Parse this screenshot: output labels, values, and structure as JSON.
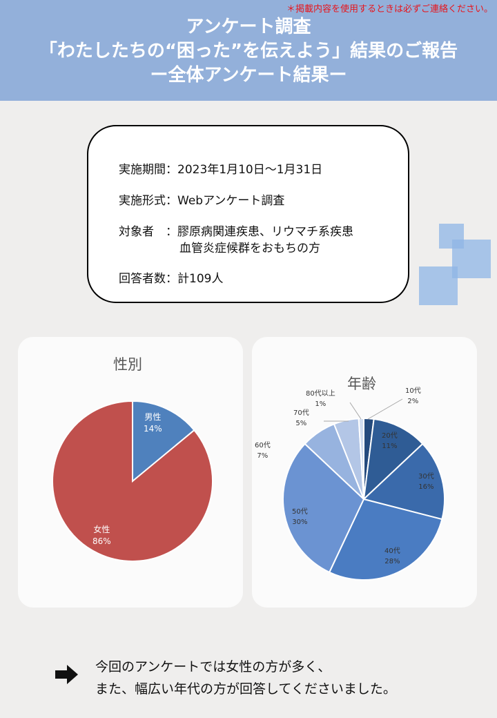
{
  "notice": "＊掲載内容を使用するときは必ずご連絡ください。",
  "title": {
    "line1": "アンケート調査",
    "line2": "「わたしたちの“困った”を伝えよう」結果のご報告",
    "line3": "ー全体アンケート結果ー"
  },
  "info": {
    "period": "実施期間：2023年1月10日～1月31日",
    "format": "実施形式：Webアンケート調査",
    "target_line1": "対象者　：膠原病関連疾患、リウマチ系疾患",
    "target_line2": "血管炎症候群をおもちの方",
    "respondents": "回答者数：計109人"
  },
  "chart_data": [
    {
      "type": "pie",
      "title": "性別",
      "slices": [
        {
          "label": "男性",
          "pct": "14%",
          "value": 14,
          "color": "#4f81bd"
        },
        {
          "label": "女性",
          "pct": "86%",
          "value": 86,
          "color": "#c0504d"
        }
      ]
    },
    {
      "type": "pie",
      "title": "年齢",
      "slices": [
        {
          "label": "10代",
          "pct": "2%",
          "value": 2,
          "color": "#244a7d"
        },
        {
          "label": "20代",
          "pct": "11%",
          "value": 11,
          "color": "#2f5c95"
        },
        {
          "label": "30代",
          "pct": "16%",
          "value": 16,
          "color": "#3a6aab"
        },
        {
          "label": "40代",
          "pct": "28%",
          "value": 28,
          "color": "#4a7cc2"
        },
        {
          "label": "50代",
          "pct": "30%",
          "value": 30,
          "color": "#6b93d2"
        },
        {
          "label": "60代",
          "pct": "7%",
          "value": 7,
          "color": "#97b3df"
        },
        {
          "label": "70代",
          "pct": "5%",
          "value": 5,
          "color": "#b3c6e6"
        },
        {
          "label": "80代以上",
          "pct": "1%",
          "value": 1,
          "color": "#d0dcef"
        }
      ]
    }
  ],
  "conclusion": {
    "line1": "今回のアンケートでは女性の方が多く、",
    "line2": "また、幅広い年代の方が回答してくださいました。"
  }
}
